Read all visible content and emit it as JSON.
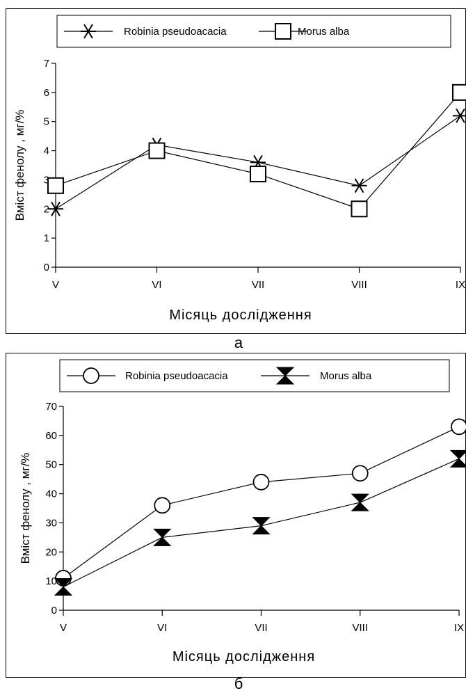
{
  "chart_data": [
    {
      "type": "line",
      "title": "",
      "xlabel": "Місяць дослідження",
      "ylabel": "Вміст фенолу , мг/%",
      "categories": [
        "V",
        "VI",
        "VII",
        "VIII",
        "IX"
      ],
      "ylim": [
        0,
        7
      ],
      "yticks": [
        0,
        1,
        2,
        3,
        4,
        5,
        6,
        7
      ],
      "grid": false,
      "legend_position": "top",
      "series": [
        {
          "name": "Robinia pseudoacacia",
          "marker": "asterisk",
          "values": [
            2.0,
            4.2,
            3.6,
            2.8,
            5.2
          ]
        },
        {
          "name": "Morus alba",
          "marker": "square",
          "values": [
            2.8,
            4.0,
            3.2,
            2.0,
            6.0
          ]
        }
      ],
      "panel_label": "а"
    },
    {
      "type": "line",
      "title": "",
      "xlabel": "Місяць дослідження",
      "ylabel": "Вміст фенолу , мг/%",
      "categories": [
        "V",
        "VI",
        "VII",
        "VIII",
        "IX"
      ],
      "ylim": [
        0,
        70
      ],
      "yticks": [
        0,
        10,
        20,
        30,
        40,
        50,
        60,
        70
      ],
      "grid": false,
      "legend_position": "top",
      "series": [
        {
          "name": "Robinia pseudoacacia",
          "marker": "circle",
          "values": [
            11,
            36,
            44,
            47,
            63
          ]
        },
        {
          "name": "Morus alba",
          "marker": "hourglass",
          "values": [
            8,
            25,
            29,
            37,
            52
          ]
        }
      ],
      "panel_label": "б"
    }
  ]
}
